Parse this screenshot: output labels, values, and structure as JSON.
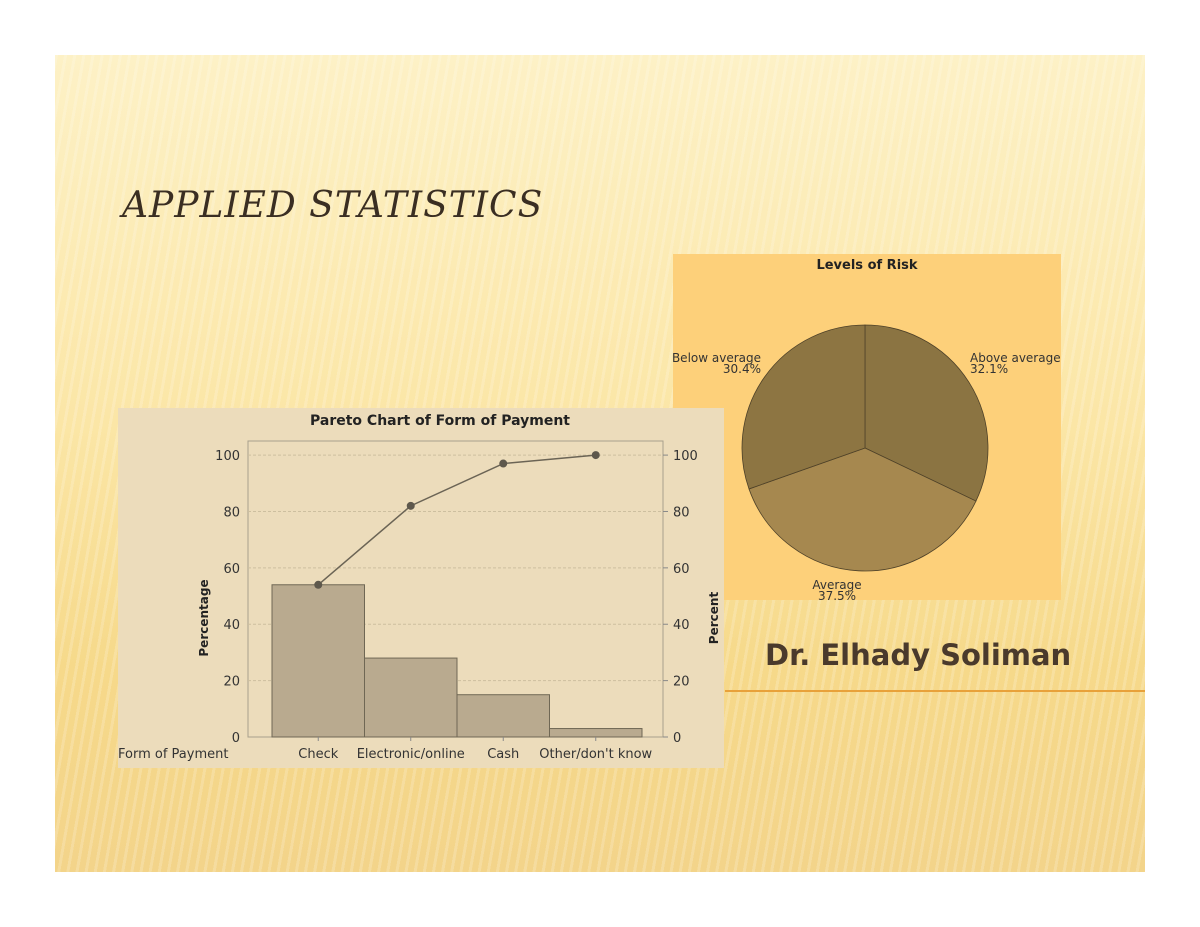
{
  "slide": {
    "title": "APPLIED STATISTICS",
    "author": "Dr. Elhady Soliman"
  },
  "chart_data": [
    {
      "type": "bar",
      "title": "Pareto Chart of Form of Payment",
      "xlabel": "Form of Payment",
      "ylabel": "Percentage",
      "y2label": "Percent",
      "categories": [
        "Check",
        "Electronic/online",
        "Cash",
        "Other/don't know"
      ],
      "values": [
        54,
        28,
        15,
        3
      ],
      "cumulative_line": [
        54,
        82,
        97,
        100
      ],
      "ylim": [
        0,
        105
      ],
      "yticks": [
        0,
        20,
        40,
        60,
        80,
        100
      ],
      "grid": true,
      "colors": {
        "bar": "#b9aa8f",
        "line": "#6b6455"
      }
    },
    {
      "type": "pie",
      "title": "Levels of Risk",
      "slices": [
        {
          "label": "Above average",
          "value": 32.1,
          "value_label": "32.1%",
          "color": "#8b7442"
        },
        {
          "label": "Average",
          "value": 37.5,
          "value_label": "37.5%",
          "color": "#a6884f"
        },
        {
          "label": "Below average",
          "value": 30.4,
          "value_label": "30.4%",
          "color": "#8d7542"
        }
      ]
    }
  ]
}
